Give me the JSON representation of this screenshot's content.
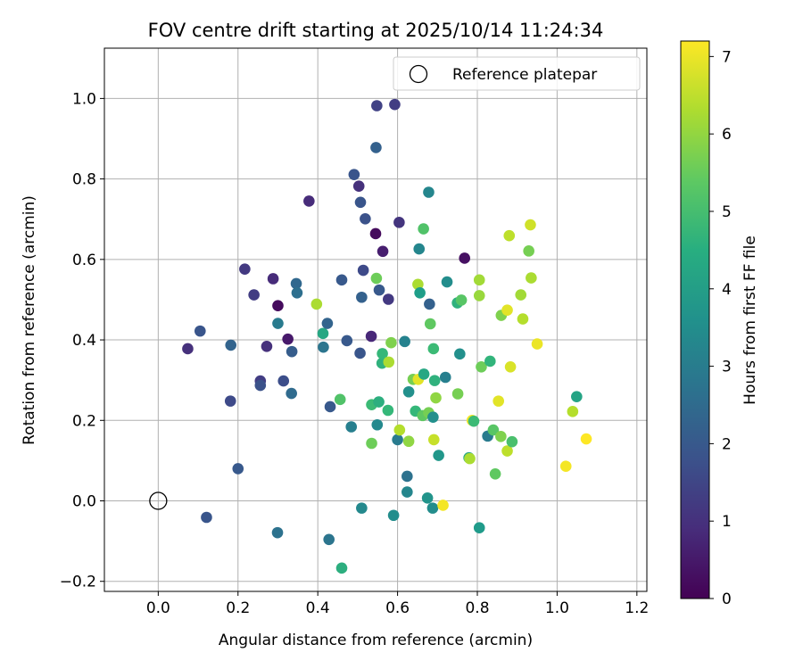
{
  "chart_data": {
    "type": "scatter",
    "title": "FOV centre drift starting at 2025/10/14 11:24:34",
    "xlabel": "Angular distance from reference (arcmin)",
    "ylabel": "Rotation from reference (arcmin)",
    "xlim": [
      -0.135,
      1.225
    ],
    "ylim": [
      -0.225,
      1.125
    ],
    "xticks": [
      0.0,
      0.2,
      0.4,
      0.6,
      0.8,
      1.0,
      1.2
    ],
    "xtick_labels": [
      "0.0",
      "0.2",
      "0.4",
      "0.6",
      "0.8",
      "1.0",
      "1.2"
    ],
    "yticks": [
      -0.2,
      0.0,
      0.2,
      0.4,
      0.6,
      0.8,
      1.0
    ],
    "ytick_labels": [
      "−0.2",
      "0.0",
      "0.2",
      "0.4",
      "0.6",
      "0.8",
      "1.0"
    ],
    "grid": true,
    "legend": {
      "placement": "top-right",
      "label": "Reference platepar"
    },
    "reference_point": {
      "x": 0.0,
      "y": 0.0
    },
    "colorbar": {
      "label": "Hours from first FF file",
      "colormap": "viridis",
      "range": [
        0,
        7.2
      ],
      "ticks": [
        0,
        1,
        2,
        3,
        4,
        5,
        6,
        7
      ],
      "tick_labels": [
        "0",
        "1",
        "2",
        "3",
        "4",
        "5",
        "6",
        "7"
      ]
    },
    "points": [
      {
        "x": 0.074,
        "y": 0.378,
        "h": 1.0
      },
      {
        "x": 0.105,
        "y": 0.422,
        "h": 1.9
      },
      {
        "x": 0.121,
        "y": -0.041,
        "h": 1.9
      },
      {
        "x": 0.182,
        "y": 0.387,
        "h": 2.3
      },
      {
        "x": 0.181,
        "y": 0.248,
        "h": 1.6
      },
      {
        "x": 0.2,
        "y": 0.08,
        "h": 2.0
      },
      {
        "x": 0.217,
        "y": 0.576,
        "h": 1.2
      },
      {
        "x": 0.24,
        "y": 0.512,
        "h": 1.3
      },
      {
        "x": 0.256,
        "y": 0.298,
        "h": 1.3
      },
      {
        "x": 0.256,
        "y": 0.287,
        "h": 1.8
      },
      {
        "x": 0.272,
        "y": 0.384,
        "h": 1.0
      },
      {
        "x": 0.288,
        "y": 0.552,
        "h": 0.9
      },
      {
        "x": 0.3,
        "y": 0.485,
        "h": 0.2
      },
      {
        "x": 0.3,
        "y": 0.441,
        "h": 3.0
      },
      {
        "x": 0.299,
        "y": -0.079,
        "h": 2.7
      },
      {
        "x": 0.314,
        "y": 0.298,
        "h": 1.7
      },
      {
        "x": 0.325,
        "y": 0.402,
        "h": 0.5
      },
      {
        "x": 0.335,
        "y": 0.371,
        "h": 2.1
      },
      {
        "x": 0.334,
        "y": 0.267,
        "h": 2.5
      },
      {
        "x": 0.346,
        "y": 0.54,
        "h": 2.4
      },
      {
        "x": 0.348,
        "y": 0.517,
        "h": 2.6
      },
      {
        "x": 0.378,
        "y": 0.745,
        "h": 0.9
      },
      {
        "x": 0.397,
        "y": 0.489,
        "h": 6.3
      },
      {
        "x": 0.413,
        "y": 0.416,
        "h": 4.3
      },
      {
        "x": 0.414,
        "y": 0.382,
        "h": 2.8
      },
      {
        "x": 0.424,
        "y": 0.441,
        "h": 2.3
      },
      {
        "x": 0.431,
        "y": 0.234,
        "h": 2.0
      },
      {
        "x": 0.428,
        "y": -0.096,
        "h": 2.8
      },
      {
        "x": 0.456,
        "y": 0.252,
        "h": 5.2
      },
      {
        "x": 0.46,
        "y": 0.549,
        "h": 2.0
      },
      {
        "x": 0.46,
        "y": -0.167,
        "h": 4.5
      },
      {
        "x": 0.473,
        "y": 0.398,
        "h": 2.0
      },
      {
        "x": 0.484,
        "y": 0.184,
        "h": 3.1
      },
      {
        "x": 0.491,
        "y": 0.811,
        "h": 1.9
      },
      {
        "x": 0.506,
        "y": 0.367,
        "h": 1.9
      },
      {
        "x": 0.503,
        "y": 0.782,
        "h": 1.0
      },
      {
        "x": 0.507,
        "y": 0.742,
        "h": 1.9
      },
      {
        "x": 0.51,
        "y": 0.506,
        "h": 2.2
      },
      {
        "x": 0.514,
        "y": 0.573,
        "h": 1.6
      },
      {
        "x": 0.519,
        "y": 0.701,
        "h": 1.8
      },
      {
        "x": 0.51,
        "y": -0.018,
        "h": 3.4
      },
      {
        "x": 0.534,
        "y": 0.409,
        "h": 0.8
      },
      {
        "x": 0.535,
        "y": 0.239,
        "h": 4.9
      },
      {
        "x": 0.535,
        "y": 0.143,
        "h": 5.6
      },
      {
        "x": 0.545,
        "y": 0.664,
        "h": 0.2
      },
      {
        "x": 0.547,
        "y": 0.553,
        "h": 5.6
      },
      {
        "x": 0.546,
        "y": 0.878,
        "h": 2.2
      },
      {
        "x": 0.549,
        "y": 0.189,
        "h": 3.4
      },
      {
        "x": 0.548,
        "y": 0.982,
        "h": 1.4
      },
      {
        "x": 0.553,
        "y": 0.246,
        "h": 4.5
      },
      {
        "x": 0.554,
        "y": 0.524,
        "h": 2.0
      },
      {
        "x": 0.561,
        "y": 0.342,
        "h": 4.6
      },
      {
        "x": 0.562,
        "y": 0.366,
        "h": 4.8
      },
      {
        "x": 0.563,
        "y": 0.62,
        "h": 0.6
      },
      {
        "x": 0.576,
        "y": 0.225,
        "h": 4.8
      },
      {
        "x": 0.577,
        "y": 0.501,
        "h": 1.2
      },
      {
        "x": 0.578,
        "y": 0.345,
        "h": 6.3
      },
      {
        "x": 0.584,
        "y": 0.393,
        "h": 5.8
      },
      {
        "x": 0.59,
        "y": -0.036,
        "h": 3.5
      },
      {
        "x": 0.593,
        "y": 0.985,
        "h": 1.3
      },
      {
        "x": 0.6,
        "y": 0.152,
        "h": 3.0
      },
      {
        "x": 0.604,
        "y": 0.692,
        "h": 1.1
      },
      {
        "x": 0.605,
        "y": 0.176,
        "h": 6.4
      },
      {
        "x": 0.618,
        "y": 0.396,
        "h": 3.2
      },
      {
        "x": 0.624,
        "y": 0.061,
        "h": 2.7
      },
      {
        "x": 0.624,
        "y": 0.022,
        "h": 3.3
      },
      {
        "x": 0.628,
        "y": 0.148,
        "h": 6.0
      },
      {
        "x": 0.628,
        "y": 0.271,
        "h": 3.6
      },
      {
        "x": 0.639,
        "y": 0.302,
        "h": 5.7
      },
      {
        "x": 0.645,
        "y": 0.223,
        "h": 4.8
      },
      {
        "x": 0.651,
        "y": 0.538,
        "h": 6.3
      },
      {
        "x": 0.652,
        "y": 0.302,
        "h": 6.9
      },
      {
        "x": 0.654,
        "y": 0.626,
        "h": 3.3
      },
      {
        "x": 0.656,
        "y": 0.517,
        "h": 4.0
      },
      {
        "x": 0.663,
        "y": 0.212,
        "h": 5.4
      },
      {
        "x": 0.666,
        "y": 0.315,
        "h": 4.3
      },
      {
        "x": 0.665,
        "y": 0.676,
        "h": 5.2
      },
      {
        "x": 0.675,
        "y": 0.007,
        "h": 3.7
      },
      {
        "x": 0.678,
        "y": 0.767,
        "h": 3.3
      },
      {
        "x": 0.678,
        "y": 0.219,
        "h": 5.7
      },
      {
        "x": 0.68,
        "y": 0.489,
        "h": 2.2
      },
      {
        "x": 0.682,
        "y": 0.44,
        "h": 5.4
      },
      {
        "x": 0.688,
        "y": -0.018,
        "h": 3.5
      },
      {
        "x": 0.689,
        "y": 0.208,
        "h": 3.6
      },
      {
        "x": 0.691,
        "y": 0.152,
        "h": 6.6
      },
      {
        "x": 0.69,
        "y": 0.378,
        "h": 4.9
      },
      {
        "x": 0.693,
        "y": 0.299,
        "h": 4.6
      },
      {
        "x": 0.696,
        "y": 0.256,
        "h": 6.0
      },
      {
        "x": 0.703,
        "y": 0.113,
        "h": 3.8
      },
      {
        "x": 0.714,
        "y": -0.011,
        "h": 7.1
      },
      {
        "x": 0.72,
        "y": 0.307,
        "h": 3.1
      },
      {
        "x": 0.724,
        "y": 0.544,
        "h": 3.5
      },
      {
        "x": 0.75,
        "y": 0.492,
        "h": 4.6
      },
      {
        "x": 0.751,
        "y": 0.266,
        "h": 5.7
      },
      {
        "x": 0.756,
        "y": 0.365,
        "h": 3.6
      },
      {
        "x": 0.76,
        "y": 0.499,
        "h": 5.3
      },
      {
        "x": 0.768,
        "y": 0.603,
        "h": 0.3
      },
      {
        "x": 0.779,
        "y": 0.107,
        "h": 4.2
      },
      {
        "x": 0.781,
        "y": 0.105,
        "h": 6.3
      },
      {
        "x": 0.787,
        "y": 0.2,
        "h": 7.1
      },
      {
        "x": 0.791,
        "y": 0.198,
        "h": 4.9
      },
      {
        "x": 0.805,
        "y": 0.51,
        "h": 6.1
      },
      {
        "x": 0.805,
        "y": 0.549,
        "h": 6.2
      },
      {
        "x": 0.805,
        "y": -0.067,
        "h": 3.9
      },
      {
        "x": 0.81,
        "y": 0.333,
        "h": 5.6
      },
      {
        "x": 0.826,
        "y": 0.161,
        "h": 3.0
      },
      {
        "x": 0.832,
        "y": 0.347,
        "h": 4.7
      },
      {
        "x": 0.84,
        "y": 0.176,
        "h": 5.3
      },
      {
        "x": 0.845,
        "y": 0.067,
        "h": 5.4
      },
      {
        "x": 0.853,
        "y": 0.248,
        "h": 6.9
      },
      {
        "x": 0.859,
        "y": 0.16,
        "h": 5.8
      },
      {
        "x": 0.86,
        "y": 0.461,
        "h": 5.8
      },
      {
        "x": 0.875,
        "y": 0.474,
        "h": 6.9
      },
      {
        "x": 0.875,
        "y": 0.124,
        "h": 6.5
      },
      {
        "x": 0.88,
        "y": 0.659,
        "h": 6.5
      },
      {
        "x": 0.883,
        "y": 0.333,
        "h": 6.8
      },
      {
        "x": 0.887,
        "y": 0.147,
        "h": 5.1
      },
      {
        "x": 0.909,
        "y": 0.512,
        "h": 6.2
      },
      {
        "x": 0.914,
        "y": 0.452,
        "h": 6.4
      },
      {
        "x": 0.929,
        "y": 0.621,
        "h": 5.7
      },
      {
        "x": 0.933,
        "y": 0.686,
        "h": 6.7
      },
      {
        "x": 0.935,
        "y": 0.554,
        "h": 6.3
      },
      {
        "x": 0.95,
        "y": 0.39,
        "h": 7.0
      },
      {
        "x": 1.022,
        "y": 0.086,
        "h": 7.1
      },
      {
        "x": 1.039,
        "y": 0.222,
        "h": 6.4
      },
      {
        "x": 1.049,
        "y": 0.259,
        "h": 4.2
      },
      {
        "x": 1.073,
        "y": 0.154,
        "h": 7.2
      }
    ]
  }
}
